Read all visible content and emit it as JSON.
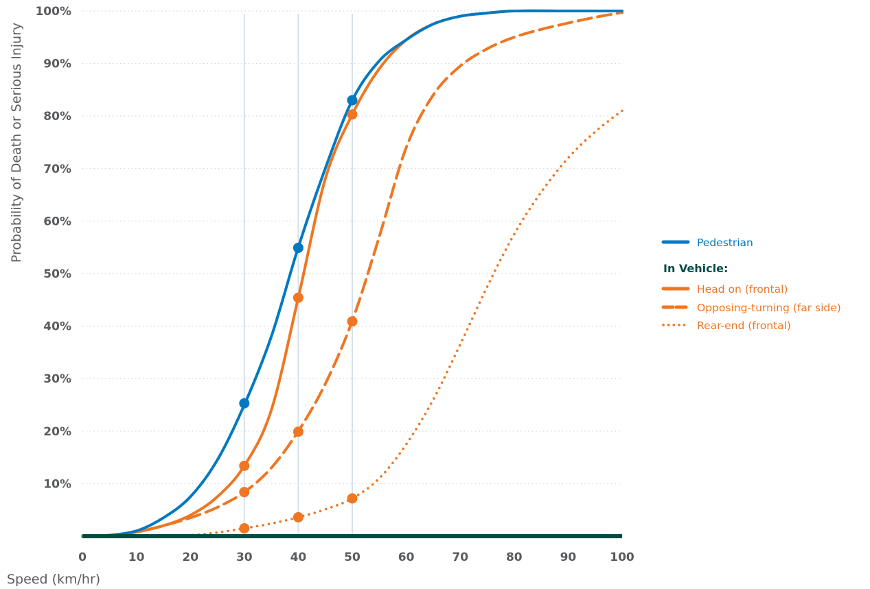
{
  "chart_data": {
    "type": "line",
    "xlabel": "Speed (km/hr)",
    "ylabel": "Probability of Death or Serious Injury",
    "xlim": [
      0,
      100
    ],
    "ylim": [
      0,
      100
    ],
    "x_ticks": [
      "0",
      "10",
      "20",
      "30",
      "40",
      "50",
      "60",
      "70",
      "80",
      "90",
      "100"
    ],
    "y_ticks": [
      "10%",
      "20%",
      "30%",
      "40%",
      "50%",
      "60%",
      "70%",
      "80%",
      "90%",
      "100%"
    ],
    "y_tick_values": [
      10,
      20,
      30,
      40,
      50,
      60,
      70,
      80,
      90,
      100
    ],
    "reference_lines_x": [
      30,
      40,
      50
    ],
    "grid": "horizontal-dotted",
    "legend_position": "right",
    "legend_heading": "In Vehicle:",
    "colors": {
      "pedestrian": "#0079c1",
      "vehicle": "#ef7622",
      "baseline": "#004c45",
      "reference": "#d6e1ed",
      "grid": "#d4d4d4",
      "heading": "#004c45",
      "tick": "#595b5e"
    },
    "series": [
      {
        "name": "Pedestrian",
        "style": "solid",
        "color": "#0079c1",
        "x": [
          4,
          10,
          15,
          20,
          25,
          30,
          35,
          40,
          45,
          50,
          55,
          60,
          65,
          70,
          75,
          80,
          90,
          100
        ],
        "y": [
          0,
          1,
          3.5,
          7.5,
          14.5,
          25,
          38,
          55,
          70,
          83,
          90.5,
          94.5,
          97.5,
          99,
          99.6,
          100,
          100,
          100
        ],
        "markers": [
          {
            "x": 30,
            "y": 25.3
          },
          {
            "x": 40,
            "y": 54.9
          },
          {
            "x": 50,
            "y": 83
          }
        ]
      },
      {
        "name": "Head on (frontal)",
        "style": "solid",
        "color": "#ef7622",
        "x": [
          0,
          5,
          10,
          15,
          20,
          25,
          30,
          35,
          40,
          45,
          50,
          55,
          60,
          65,
          70,
          75,
          80,
          90,
          100
        ],
        "y": [
          0,
          0.2,
          0.8,
          2,
          4,
          7.5,
          13.4,
          24,
          45.4,
          68,
          80.3,
          89,
          94.5,
          97.5,
          99,
          99.6,
          100,
          100,
          100
        ],
        "markers": [
          {
            "x": 30,
            "y": 13.4
          },
          {
            "x": 40,
            "y": 45.4
          },
          {
            "x": 50,
            "y": 80.3
          }
        ]
      },
      {
        "name": "Opposing-turning (far side)",
        "style": "dashed",
        "color": "#ef7622",
        "x": [
          5,
          10,
          15,
          20,
          25,
          30,
          35,
          40,
          45,
          50,
          55,
          60,
          65,
          70,
          75,
          80,
          85,
          90,
          95,
          100
        ],
        "y": [
          0,
          0.8,
          2,
          3.5,
          5.5,
          8.4,
          13,
          20,
          29,
          41,
          57,
          74,
          84,
          89.5,
          92.8,
          95,
          96.5,
          97.7,
          98.8,
          99.7
        ],
        "markers": [
          {
            "x": 30,
            "y": 8.4
          },
          {
            "x": 40,
            "y": 19.9
          },
          {
            "x": 50,
            "y": 40.9
          }
        ]
      },
      {
        "name": "Rear-end (frontal)",
        "style": "dotted",
        "color": "#ef7622",
        "x": [
          15,
          20,
          25,
          30,
          35,
          40,
          45,
          50,
          55,
          60,
          65,
          70,
          75,
          80,
          85,
          90,
          95,
          100
        ],
        "y": [
          0,
          0.2,
          0.7,
          1.5,
          2.4,
          3.6,
          5.1,
          7.2,
          11,
          17.5,
          26,
          36.5,
          47.5,
          57.5,
          65.5,
          72,
          77,
          81
        ],
        "markers": [
          {
            "x": 30,
            "y": 1.5
          },
          {
            "x": 40,
            "y": 3.6
          },
          {
            "x": 50,
            "y": 7.2
          }
        ]
      }
    ]
  }
}
